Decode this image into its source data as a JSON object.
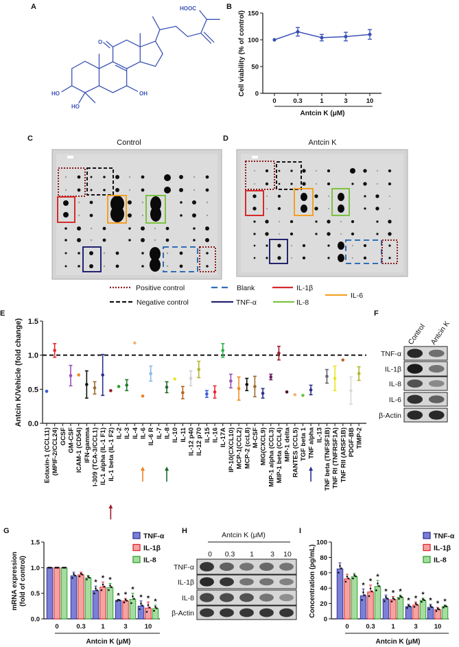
{
  "panels": {
    "A": "A",
    "B": "B",
    "C": "C",
    "D": "D",
    "E": "E",
    "F": "F",
    "G": "G",
    "H": "H",
    "I": "I"
  },
  "structure": {
    "labels": {
      "acid": "HOOC",
      "ketone": "O",
      "oh7": "OH",
      "oh3": "HO",
      "oh4": "HO"
    },
    "color": "#3a52b6"
  },
  "arrays": {
    "control_title": "Control",
    "treated_title": "Antcin K",
    "legend": {
      "positive": "Positive control",
      "negative": "Negative control",
      "blank": "Blank",
      "tnf": "TNF-α",
      "il1b": "IL-1β",
      "il8": "IL-8",
      "il6": "IL-6"
    },
    "colors": {
      "positive": "#8b1a1a",
      "negative": "#111111",
      "blank": "#2e6db4",
      "tnf": "#22236e",
      "il1b": "#d42a2a",
      "il8": "#7cc242",
      "il6": "#f4a024"
    }
  },
  "blot_F": {
    "lanes": [
      "Control",
      "Antcin K"
    ],
    "rows": [
      "TNF-α",
      "IL-1β",
      "IL-8",
      "IL-6",
      "β-Actin"
    ]
  },
  "blot_H": {
    "header": "Antcin K (μM)",
    "lanes": [
      "0",
      "0.3",
      "1",
      "3",
      "10"
    ],
    "rows": [
      "TNF-α",
      "IL-1β",
      "IL-8",
      "β-Actin"
    ]
  },
  "chart_data": [
    {
      "id": "B",
      "type": "line",
      "ylabel": "Cell viability (% of control)",
      "xlabel": "Antcin K (μM)",
      "categories": [
        "0",
        "0.3",
        "1",
        "3",
        "10"
      ],
      "values": [
        100,
        115,
        104,
        106,
        110
      ],
      "errors": [
        0,
        8,
        6,
        8,
        9
      ],
      "ylim": [
        0,
        150
      ],
      "yticks": [
        "0",
        "50",
        "100",
        "150"
      ],
      "color": "#3a52b6"
    },
    {
      "id": "E",
      "type": "scatter",
      "ylabel": "Antcin K/Vehicle (fold change)",
      "ylim": [
        0,
        1.5
      ],
      "yticks": [
        "0.0",
        "0.5",
        "1.0",
        "1.5"
      ],
      "reference_line": 1.0,
      "arrows": [
        {
          "category": "IL-1 beta (IL-1 F2)",
          "color": "#a0192a"
        },
        {
          "category": "IL-6",
          "color": "#f07f22"
        },
        {
          "category": "IL-8",
          "color": "#1e6b2a"
        },
        {
          "category": "TNF alpha",
          "color": "#2a2f8c"
        }
      ],
      "categories": [
        "Eotaxin-1 (CCL11)",
        "(MPIF-2/CCL24)",
        "GCSF",
        "GM-CSF",
        "ICAM-1 (CD54)",
        "IFN-gamma",
        "I-309 (TCA-3/CCL1)",
        "IL-1 alpha (IL-1 F1)",
        "IL-1 beta (IL-1 F2)",
        "IL-2",
        "IL-3",
        "IL-4",
        "IL-6",
        "IL-6 R",
        "IL-7",
        "IL-8",
        "IL-10",
        "IL-11",
        "IL-12 p40",
        "IL-12 p70",
        "IL-15",
        "IL-16",
        "IL-17A",
        "IP-10(CXCL10)",
        "MCP-1(CCL2)",
        "MCP-2 (ccL8)",
        "M-CSF",
        "MIG(CXCL9)",
        "MIP-1 alpha (CCL3)",
        "MIP-1 beta (CCL4)",
        "MIP-1 delta",
        "RANTES (CCL5)",
        "TGF beta 1",
        "TNF alpha",
        "IL-13",
        "TNF beta (TNFSF1B)",
        "TNF RI (TNFRSF1A)",
        "TNF RII (ARSF1B)",
        "PDGF-BB",
        "TIMP-2"
      ],
      "values": [
        0.47,
        1.07,
        null,
        0.7,
        0.71,
        0.57,
        0.52,
        0.71,
        0.48,
        0.54,
        0.56,
        1.18,
        0.4,
        0.73,
        null,
        0.53,
        0.65,
        0.45,
        0.66,
        0.79,
        0.43,
        0.46,
        1.07,
        0.62,
        0.51,
        0.57,
        0.54,
        0.44,
        0.68,
        1.03,
        0.46,
        0.42,
        0.41,
        0.49,
        null,
        0.69,
        0.66,
        0.93,
        0.48,
        0.73
      ],
      "errors": [
        0,
        0.1,
        0,
        0.15,
        0,
        0.2,
        0.09,
        0.3,
        0,
        0,
        0.08,
        0,
        0,
        0.11,
        0,
        0.08,
        0,
        0.09,
        0.11,
        0.12,
        0.05,
        0.09,
        0.1,
        0.1,
        0.17,
        0.09,
        0.15,
        0.07,
        0.04,
        0.1,
        0,
        0,
        0,
        0.07,
        0,
        0.1,
        0.18,
        0,
        0.2,
        0.1
      ],
      "colors": [
        "#3b5bdb",
        "#e8262c",
        "#999999",
        "#9b4fb6",
        "#f28a1e",
        "#111111",
        "#9c6b30",
        "#2a2f8c",
        "#a0192a",
        "#2ca02c",
        "#1f7a2e",
        "#f4b27a",
        "#f07f22",
        "#8ab8e8",
        "#999999",
        "#1e6b2a",
        "#e6e620",
        "#b5651d",
        "#cfcfcf",
        "#b5b52a",
        "#3b5bdb",
        "#e8262c",
        "#2cb24a",
        "#9b4fb6",
        "#f28a1e",
        "#111111",
        "#9c6b30",
        "#2a2f8c",
        "#6b1f5e",
        "#a0192a",
        "#4a1030",
        "#f4b27a",
        "#6ec04a",
        "#2a2f8c",
        "#999999",
        "#666666",
        "#e6e620",
        "#c0622a",
        "#d9d9d9",
        "#b5b52a"
      ]
    },
    {
      "id": "G",
      "type": "bar",
      "ylabel": [
        "mRNA expression",
        "(fold of control)"
      ],
      "xlabel": "Antcin K (μM)",
      "categories": [
        "0",
        "0.3",
        "1",
        "3",
        "10"
      ],
      "ylim": [
        0,
        1.5
      ],
      "yticks": [
        "0.0",
        "0.5",
        "1.0",
        "1.5"
      ],
      "series": [
        {
          "name": "TNF-α",
          "values": [
            1.0,
            0.84,
            0.55,
            0.36,
            0.25
          ],
          "errors": [
            0,
            0.07,
            0.09,
            0.02,
            0.1
          ],
          "significant": [
            false,
            false,
            true,
            true,
            true
          ]
        },
        {
          "name": "IL-1β",
          "values": [
            1.0,
            0.86,
            0.62,
            0.35,
            0.21
          ],
          "errors": [
            0,
            0.05,
            0.1,
            0.05,
            0.12
          ],
          "significant": [
            false,
            false,
            true,
            true,
            true
          ]
        },
        {
          "name": "IL-8",
          "values": [
            1.0,
            0.8,
            0.61,
            0.38,
            0.2
          ],
          "errors": [
            0,
            0.05,
            0.08,
            0.12,
            0.07
          ],
          "significant": [
            false,
            false,
            true,
            true,
            true
          ]
        }
      ],
      "significance_mark": "*"
    },
    {
      "id": "I",
      "type": "bar",
      "ylabel": "Concentration (pg/mL)",
      "xlabel": "Antcin K (μM)",
      "categories": [
        "0",
        "0.3",
        "1",
        "3",
        "10"
      ],
      "ylim": [
        0,
        100
      ],
      "yticks": [
        "0",
        "20",
        "40",
        "60",
        "80",
        "100"
      ],
      "series": [
        {
          "name": "TNF-α",
          "values": [
            65,
            30,
            26,
            16,
            15
          ],
          "errors": [
            8,
            9,
            5,
            3,
            4
          ],
          "significant": [
            false,
            true,
            true,
            true,
            true
          ]
        },
        {
          "name": "IL-1β",
          "values": [
            52,
            35,
            25,
            18,
            12
          ],
          "errors": [
            6,
            9,
            4,
            4,
            3
          ],
          "significant": [
            false,
            true,
            true,
            true,
            true
          ]
        },
        {
          "name": "IL-8",
          "values": [
            55,
            42,
            28,
            24,
            16
          ],
          "errors": [
            4,
            8,
            3,
            3,
            2
          ],
          "significant": [
            false,
            true,
            true,
            true,
            true
          ]
        }
      ],
      "significance_mark": "*"
    }
  ],
  "series_colors": {
    "fill": [
      "#7b7fd6",
      "#f4a3a3",
      "#a6dca0"
    ],
    "stroke": [
      "#2e3192",
      "#e0262c",
      "#2ca02c"
    ]
  }
}
